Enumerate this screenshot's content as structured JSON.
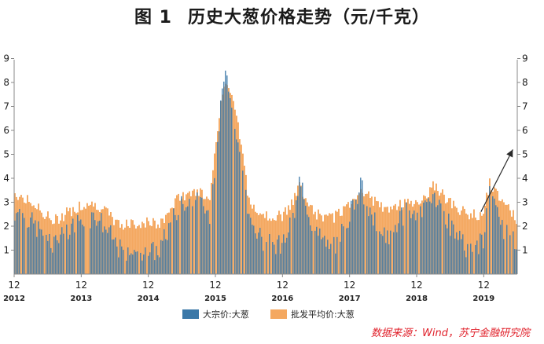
{
  "header": {
    "figure_label": "图 1",
    "title": "历史大葱价格走势（元/千克）"
  },
  "source": "数据来源：Wind，苏宁金融研究院",
  "colors": {
    "bulk": "#3b78a8",
    "wholesale": "#f4a860",
    "axis": "#888888",
    "arrow": "#2a2a2a",
    "source_text": "#e0202a"
  },
  "chart_data": {
    "type": "bar",
    "title": "历史大葱价格走势（元/千克）",
    "ylim": [
      0,
      9.5
    ],
    "yticks": [
      "1",
      "2",
      "3",
      "4",
      "5",
      "6",
      "7",
      "8",
      "9"
    ],
    "xticks": [
      {
        "month": "12",
        "year": "2012"
      },
      {
        "month": "12",
        "year": "2013"
      },
      {
        "month": "12",
        "year": "2014"
      },
      {
        "month": "12",
        "year": "2015"
      },
      {
        "month": "12",
        "year": "2016"
      },
      {
        "month": "12",
        "year": "2017"
      },
      {
        "month": "12",
        "year": "2018"
      },
      {
        "month": "12",
        "year": "2019"
      }
    ],
    "legend": [
      "大宗价:大葱",
      "批发平均价:大葱"
    ],
    "legend_position": "bottom",
    "period": [
      "2012-12",
      "2020-06"
    ],
    "series": [
      {
        "name": "大宗价:大葱",
        "approx_path": [
          [
            "2012-12",
            2.6
          ],
          [
            "2013-03",
            2.2
          ],
          [
            "2013-07",
            1.2
          ],
          [
            "2013-12",
            2.3
          ],
          [
            "2014-03",
            2.4
          ],
          [
            "2014-07",
            1.0
          ],
          [
            "2014-12",
            0.9
          ],
          [
            "2015-02",
            1.0
          ],
          [
            "2015-05",
            2.6
          ],
          [
            "2015-08",
            3.3
          ],
          [
            "2015-11",
            2.4
          ],
          [
            "2016-01",
            7.0
          ],
          [
            "2016-02",
            8.5
          ],
          [
            "2016-04",
            5.8
          ],
          [
            "2016-06",
            2.2
          ],
          [
            "2016-09",
            1.2
          ],
          [
            "2016-12",
            1.3
          ],
          [
            "2017-02",
            2.3
          ],
          [
            "2017-03",
            3.8
          ],
          [
            "2017-06",
            1.7
          ],
          [
            "2017-09",
            1.0
          ],
          [
            "2017-12",
            2.5
          ],
          [
            "2018-02",
            3.7
          ],
          [
            "2018-04",
            2.3
          ],
          [
            "2018-07",
            1.5
          ],
          [
            "2018-10",
            2.6
          ],
          [
            "2019-01",
            2.4
          ],
          [
            "2019-03",
            3.5
          ],
          [
            "2019-06",
            2.0
          ],
          [
            "2019-09",
            1.1
          ],
          [
            "2019-12",
            1.3
          ],
          [
            "2020-01",
            3.5
          ],
          [
            "2020-03",
            2.0
          ],
          [
            "2020-06",
            1.2
          ]
        ]
      },
      {
        "name": "批发平均价:大葱",
        "approx_path": [
          [
            "2012-12",
            3.4
          ],
          [
            "2013-03",
            3.0
          ],
          [
            "2013-07",
            2.2
          ],
          [
            "2013-12",
            2.9
          ],
          [
            "2014-03",
            2.9
          ],
          [
            "2014-07",
            2.0
          ],
          [
            "2014-12",
            2.2
          ],
          [
            "2015-02",
            2.0
          ],
          [
            "2015-05",
            3.1
          ],
          [
            "2015-08",
            3.5
          ],
          [
            "2015-11",
            3.3
          ],
          [
            "2016-01",
            7.3
          ],
          [
            "2016-02",
            8.1
          ],
          [
            "2016-04",
            6.5
          ],
          [
            "2016-06",
            3.0
          ],
          [
            "2016-09",
            2.5
          ],
          [
            "2016-12",
            2.4
          ],
          [
            "2017-02",
            3.0
          ],
          [
            "2017-03",
            3.7
          ],
          [
            "2017-06",
            2.5
          ],
          [
            "2017-09",
            2.3
          ],
          [
            "2017-12",
            2.9
          ],
          [
            "2018-02",
            3.6
          ],
          [
            "2018-04",
            3.1
          ],
          [
            "2018-07",
            2.6
          ],
          [
            "2018-10",
            3.0
          ],
          [
            "2019-01",
            3.1
          ],
          [
            "2019-03",
            3.7
          ],
          [
            "2019-06",
            3.0
          ],
          [
            "2019-09",
            2.5
          ],
          [
            "2019-12",
            2.5
          ],
          [
            "2020-01",
            3.8
          ],
          [
            "2020-03",
            3.2
          ],
          [
            "2020-06",
            2.3
          ]
        ]
      }
    ]
  }
}
